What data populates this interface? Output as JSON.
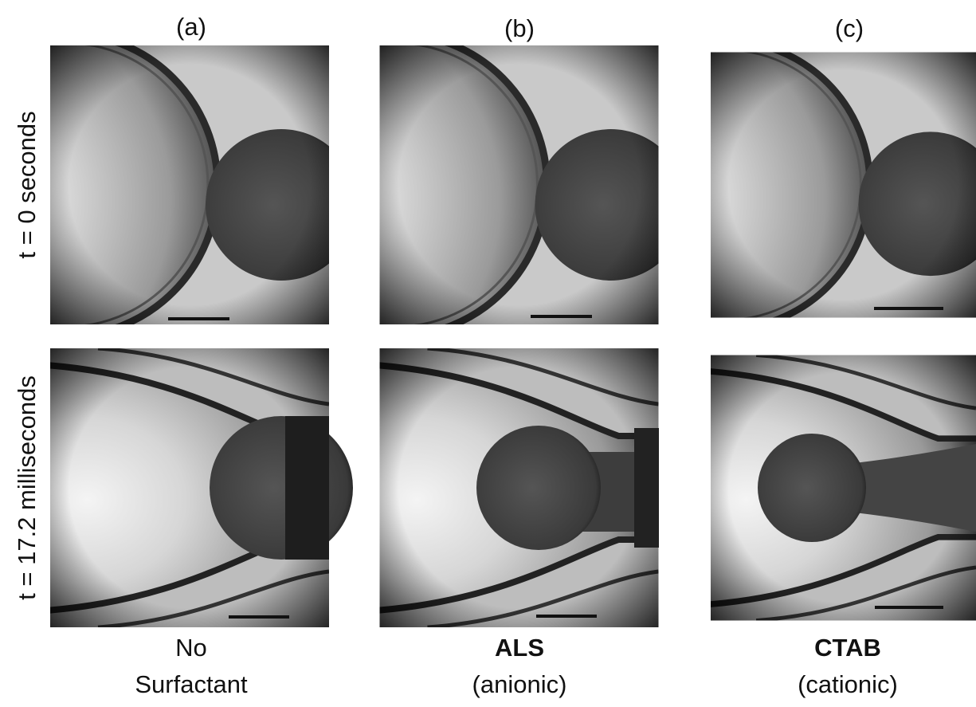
{
  "columns": [
    {
      "label": "(a)",
      "caption": [
        "No",
        "Surfactant"
      ]
    },
    {
      "label": "(b)",
      "caption": [
        "ALS",
        "(anionic)"
      ]
    },
    {
      "label": "(c)",
      "caption": [
        "CTAB",
        "(cationic)"
      ]
    }
  ],
  "rows": [
    {
      "label": "t = 0 seconds"
    },
    {
      "label": "t = 17.2 milliseconds"
    }
  ]
}
